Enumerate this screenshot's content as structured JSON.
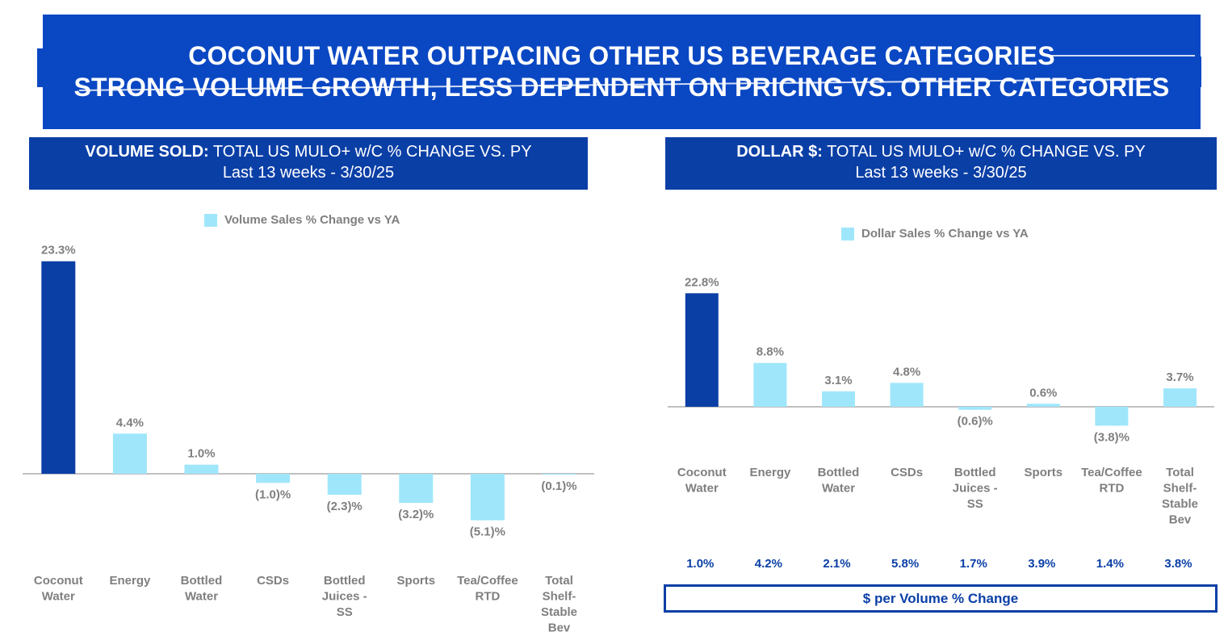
{
  "title": {
    "line1": "COCONUT WATER OUTPACING OTHER US BEVERAGE CATEGORIES",
    "line2": "STRONG VOLUME GROWTH, LESS DEPENDENT ON PRICING VS. OTHER CATEGORIES"
  },
  "colors": {
    "banner": "#0a47c3",
    "header": "#0a3fa6",
    "highlight_bar": "#0a3fa6",
    "bar": "#9fe6fb",
    "label": "#7f7f7f"
  },
  "left_panel": {
    "header_bold": "VOLUME SOLD:",
    "header_text": " TOTAL US MULO+ w/C % CHANGE VS. PY",
    "subheader": "Last 13 weeks - 3/30/25"
  },
  "right_panel": {
    "header_bold": "DOLLAR $:",
    "header_text": " TOTAL US MULO+ w/C % CHANGE VS. PY",
    "subheader": "Last 13 weeks - 3/30/25",
    "footer_label": "$ per Volume % Change"
  },
  "chart_data": [
    {
      "type": "bar",
      "legend": "Volume Sales % Change vs YA",
      "categories": [
        [
          "Coconut",
          "Water"
        ],
        [
          "Energy"
        ],
        [
          "Bottled",
          "Water"
        ],
        [
          "CSDs"
        ],
        [
          "Bottled",
          "Juices -",
          "SS"
        ],
        [
          "Sports"
        ],
        [
          "Tea/Coffee",
          "RTD"
        ],
        [
          "Total",
          "Shelf-",
          "Stable",
          "Bev"
        ]
      ],
      "values": [
        23.3,
        4.4,
        1.0,
        -1.0,
        -2.3,
        -3.2,
        -5.1,
        -0.1
      ],
      "labels": [
        "23.3%",
        "4.4%",
        "1.0%",
        "(1.0)%",
        "(2.3)%",
        "(3.2)%",
        "(5.1)%",
        "(0.1)%"
      ],
      "highlight_index": 0
    },
    {
      "type": "bar",
      "legend": "Dollar Sales % Change vs YA",
      "categories": [
        [
          "Coconut",
          "Water"
        ],
        [
          "Energy"
        ],
        [
          "Bottled",
          "Water"
        ],
        [
          "CSDs"
        ],
        [
          "Bottled",
          "Juices -",
          "SS"
        ],
        [
          "Sports"
        ],
        [
          "Tea/Coffee",
          "RTD"
        ],
        [
          "Total",
          "Shelf-",
          "Stable",
          "Bev"
        ]
      ],
      "values": [
        22.8,
        8.8,
        3.1,
        4.8,
        -0.6,
        0.6,
        -3.8,
        3.7
      ],
      "labels": [
        "22.8%",
        "8.8%",
        "3.1%",
        "4.8%",
        "(0.6)%",
        "0.6%",
        "(3.8)%",
        "3.7%"
      ],
      "highlight_index": 0,
      "price_per_volume_change": [
        "1.0%",
        "4.2%",
        "2.1%",
        "5.8%",
        "1.7%",
        "3.9%",
        "1.4%",
        "3.8%"
      ]
    }
  ]
}
